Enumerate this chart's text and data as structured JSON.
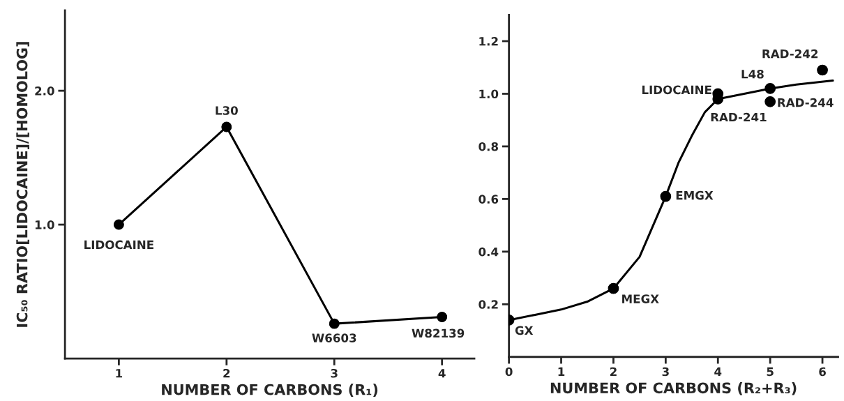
{
  "chart_data": [
    {
      "type": "line",
      "x": [
        1,
        2,
        3,
        4
      ],
      "xlim": [
        0.5,
        4.3
      ],
      "xticks": [
        1,
        2,
        3,
        4
      ],
      "ylim": [
        0,
        2.6
      ],
      "yticks": [
        {
          "value": 1.0,
          "label": "1.0"
        },
        {
          "value": 2.0,
          "label": "2.0"
        }
      ],
      "xlabel": "NUMBER OF CARBONS (R₁)",
      "ylabel": "IC₅₀ RATIO[LIDOCAINE]/[HOMOLOG]",
      "marker": "circle",
      "line_style": "solid",
      "grid": false,
      "legend": false,
      "series": [
        {
          "color": "#000000",
          "values": [
            1.0,
            1.73,
            0.26,
            0.31
          ]
        }
      ],
      "annotations": [
        {
          "text": "LIDOCAINE",
          "x": 1,
          "y": 1.0
        },
        {
          "text": "L30",
          "x": 2,
          "y": 1.73
        },
        {
          "text": "W6603",
          "x": 3,
          "y": 0.26
        },
        {
          "text": "W82139",
          "x": 4,
          "y": 0.31
        }
      ]
    },
    {
      "type": "scatter",
      "xlim": [
        0,
        6.3
      ],
      "xticks": [
        0,
        1,
        2,
        3,
        4,
        5,
        6
      ],
      "ylim": [
        0,
        1.3
      ],
      "yticks": [
        {
          "value": 0.2,
          "label": "0.2"
        },
        {
          "value": 0.4,
          "label": "0.4"
        },
        {
          "value": 0.6,
          "label": "0.6"
        },
        {
          "value": 0.8,
          "label": "0.8"
        },
        {
          "value": 1.0,
          "label": "1.0"
        },
        {
          "value": 1.2,
          "label": "1.2"
        }
      ],
      "xlabel": "NUMBER OF CARBONS (R₂+R₃)",
      "grid": false,
      "legend": false,
      "series": [
        {
          "type": "scatter",
          "marker": "circle",
          "color": "#000000",
          "x": [
            0,
            2,
            3,
            4,
            4,
            5,
            5,
            6
          ],
          "values": [
            0.14,
            0.26,
            0.61,
            1.0,
            0.98,
            1.02,
            0.97,
            1.09
          ]
        },
        {
          "type": "line",
          "marker": "none",
          "color": "#000000",
          "x": [
            0,
            0.5,
            1,
            1.5,
            2,
            2.5,
            3,
            3.25,
            3.5,
            3.75,
            4,
            4.5,
            5,
            5.5,
            6.2
          ],
          "values": [
            0.14,
            0.16,
            0.18,
            0.21,
            0.26,
            0.38,
            0.61,
            0.74,
            0.84,
            0.93,
            0.98,
            1.0,
            1.02,
            1.035,
            1.05
          ]
        }
      ],
      "annotations": [
        {
          "text": "GX",
          "x": 0,
          "y": 0.14
        },
        {
          "text": "MEGX",
          "x": 2,
          "y": 0.26
        },
        {
          "text": "EMGX",
          "x": 3,
          "y": 0.61
        },
        {
          "text": "LIDOCAINE",
          "x": 4,
          "y": 1.0
        },
        {
          "text": "RAD-241",
          "x": 4,
          "y": 0.98
        },
        {
          "text": "L48",
          "x": 5,
          "y": 1.02
        },
        {
          "text": "RAD-244",
          "x": 5,
          "y": 0.97
        },
        {
          "text": "RAD-242",
          "x": 6,
          "y": 1.09
        }
      ]
    }
  ]
}
